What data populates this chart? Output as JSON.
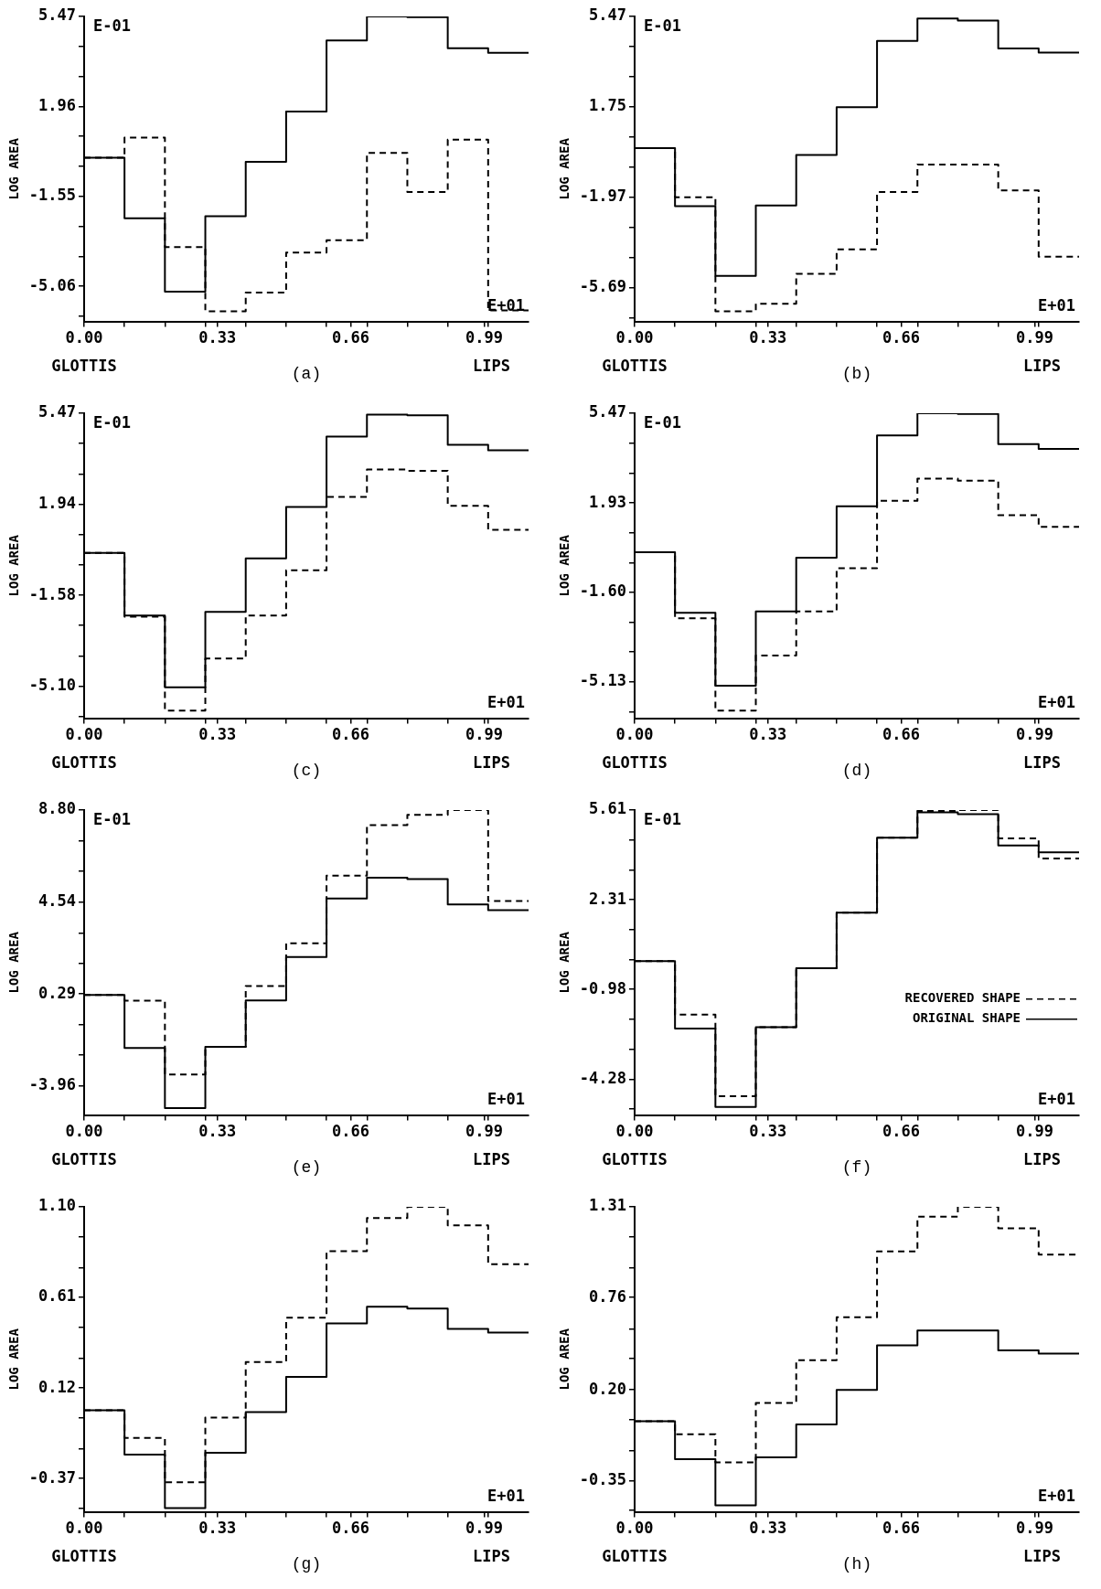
{
  "chart_data": [
    {
      "type": "step",
      "xlabel": "(a)",
      "ylabel": "LOG AREA",
      "annotations": [
        "E-01",
        "E+01",
        "GLOTTIS",
        "LIPS"
      ],
      "x": [
        0,
        0.1,
        0.2,
        0.3,
        0.4,
        0.5,
        0.6,
        0.7,
        0.8,
        0.9,
        1.0,
        1.1
      ],
      "xlim": [
        0,
        1.1
      ],
      "xticks": [
        {
          "value": 0,
          "label": "0.00"
        },
        {
          "value": 0.1,
          "label": null
        },
        {
          "value": 0.2,
          "label": null
        },
        {
          "value": 0.3,
          "label": null
        },
        {
          "value": 0.33,
          "label": "0.33"
        },
        {
          "value": 0.4,
          "label": null
        },
        {
          "value": 0.5,
          "label": null
        },
        {
          "value": 0.6,
          "label": null
        },
        {
          "value": 0.66,
          "label": "0.66"
        },
        {
          "value": 0.7,
          "label": null
        },
        {
          "value": 0.8,
          "label": null
        },
        {
          "value": 0.9,
          "label": null
        },
        {
          "value": 0.99,
          "label": "0.99"
        },
        {
          "value": 1.0,
          "label": null
        }
      ],
      "ylim": [
        -6.43,
        5.47
      ],
      "yticks": [
        5.47,
        {
          "value": 4.3,
          "label": null
        },
        {
          "value": 3.13,
          "label": null
        },
        1.96,
        {
          "value": 0.79,
          "label": null
        },
        {
          "value": -0.38,
          "label": null
        },
        -1.55,
        {
          "value": -2.72,
          "label": null
        },
        {
          "value": -3.89,
          "label": null
        },
        -5.06,
        {
          "value": -6.23,
          "label": null
        }
      ],
      "series": [
        {
          "color": "#000000",
          "line_style": "solid",
          "values": [
            -0.04,
            -2.4,
            -5.27,
            -2.32,
            -0.2,
            1.76,
            4.53,
            5.47,
            5.44,
            4.23,
            4.05,
            4.05
          ]
        },
        {
          "color": "#000000",
          "line_style": "dashed",
          "values": [
            -0.04,
            0.74,
            -3.53,
            -6.03,
            -5.3,
            -3.74,
            -3.26,
            0.15,
            -1.38,
            0.66,
            -6.0,
            -6.0
          ]
        }
      ]
    },
    {
      "type": "step",
      "xlabel": "(b)",
      "ylabel": "LOG AREA",
      "annotations": [
        "E-01",
        "E+01",
        "GLOTTIS",
        "LIPS"
      ],
      "x": [
        0,
        0.1,
        0.2,
        0.3,
        0.4,
        0.5,
        0.6,
        0.7,
        0.8,
        0.9,
        1.0,
        1.1
      ],
      "xlim": [
        0,
        1.1
      ],
      "xticks": [
        {
          "value": 0,
          "label": "0.00"
        },
        {
          "value": 0.1,
          "label": null
        },
        {
          "value": 0.2,
          "label": null
        },
        {
          "value": 0.3,
          "label": null
        },
        {
          "value": 0.33,
          "label": "0.33"
        },
        {
          "value": 0.4,
          "label": null
        },
        {
          "value": 0.5,
          "label": null
        },
        {
          "value": 0.6,
          "label": null
        },
        {
          "value": 0.66,
          "label": "0.66"
        },
        {
          "value": 0.7,
          "label": null
        },
        {
          "value": 0.8,
          "label": null
        },
        {
          "value": 0.9,
          "label": null
        },
        {
          "value": 0.99,
          "label": "0.99"
        },
        {
          "value": 1.0,
          "label": null
        }
      ],
      "ylim": [
        -7.08,
        5.47
      ],
      "yticks": [
        5.47,
        {
          "value": 4.23,
          "label": null
        },
        {
          "value": 2.99,
          "label": null
        },
        1.75,
        {
          "value": 0.51,
          "label": null
        },
        {
          "value": -0.73,
          "label": null
        },
        -1.97,
        {
          "value": -3.21,
          "label": null
        },
        {
          "value": -4.45,
          "label": null
        },
        -5.69,
        {
          "value": -6.93,
          "label": null
        }
      ],
      "series": [
        {
          "color": "#000000",
          "line_style": "solid",
          "values": [
            0.05,
            -2.34,
            -5.2,
            -2.31,
            -0.23,
            1.74,
            4.46,
            5.39,
            5.3,
            4.15,
            3.98,
            3.98
          ]
        },
        {
          "color": "#000000",
          "line_style": "dashed",
          "values": [
            0.05,
            -1.97,
            -6.66,
            -6.35,
            -5.12,
            -4.11,
            -1.75,
            -0.62,
            -0.62,
            -1.69,
            -4.41,
            -4.41
          ]
        }
      ]
    },
    {
      "type": "step",
      "xlabel": "(c)",
      "ylabel": "LOG AREA",
      "annotations": [
        "E-01",
        "E+01",
        "GLOTTIS",
        "LIPS"
      ],
      "x": [
        0,
        0.1,
        0.2,
        0.3,
        0.4,
        0.5,
        0.6,
        0.7,
        0.8,
        0.9,
        1.0,
        1.1
      ],
      "xlim": [
        0,
        1.1
      ],
      "xticks": [
        {
          "value": 0,
          "label": "0.00"
        },
        {
          "value": 0.1,
          "label": null
        },
        {
          "value": 0.2,
          "label": null
        },
        {
          "value": 0.3,
          "label": null
        },
        {
          "value": 0.33,
          "label": "0.33"
        },
        {
          "value": 0.4,
          "label": null
        },
        {
          "value": 0.5,
          "label": null
        },
        {
          "value": 0.6,
          "label": null
        },
        {
          "value": 0.66,
          "label": "0.66"
        },
        {
          "value": 0.7,
          "label": null
        },
        {
          "value": 0.8,
          "label": null
        },
        {
          "value": 0.9,
          "label": null
        },
        {
          "value": 0.99,
          "label": "0.99"
        },
        {
          "value": 1.0,
          "label": null
        }
      ],
      "ylim": [
        -6.34,
        5.47
      ],
      "yticks": [
        5.47,
        {
          "value": 4.3,
          "label": null
        },
        {
          "value": 3.12,
          "label": null
        },
        1.94,
        {
          "value": 0.77,
          "label": null
        },
        {
          "value": -0.41,
          "label": null
        },
        -1.58,
        {
          "value": -2.75,
          "label": null
        },
        {
          "value": -3.93,
          "label": null
        },
        {
          "value": -5.1,
          "label": "-5.10"
        },
        {
          "value": -6.27,
          "label": null
        }
      ],
      "series": [
        {
          "color": "#000000",
          "line_style": "solid",
          "values": [
            0.06,
            -2.36,
            -5.14,
            -2.22,
            -0.15,
            1.84,
            4.57,
            5.42,
            5.39,
            4.25,
            4.04,
            4.04
          ]
        },
        {
          "color": "#000000",
          "line_style": "dashed",
          "values": [
            0.06,
            -2.41,
            -6.04,
            -4.03,
            -2.36,
            -0.61,
            2.23,
            3.29,
            3.24,
            1.89,
            0.96,
            0.96
          ]
        }
      ]
    },
    {
      "type": "step",
      "xlabel": "(d)",
      "ylabel": "LOG AREA",
      "annotations": [
        "E-01",
        "E+01",
        "GLOTTIS",
        "LIPS"
      ],
      "x": [
        0,
        0.1,
        0.2,
        0.3,
        0.4,
        0.5,
        0.6,
        0.7,
        0.8,
        0.9,
        1.0,
        1.1
      ],
      "xlim": [
        0,
        1.1
      ],
      "xticks": [
        {
          "value": 0,
          "label": "0.00"
        },
        {
          "value": 0.1,
          "label": null
        },
        {
          "value": 0.2,
          "label": null
        },
        {
          "value": 0.3,
          "label": null
        },
        {
          "value": 0.33,
          "label": "0.33"
        },
        {
          "value": 0.4,
          "label": null
        },
        {
          "value": 0.5,
          "label": null
        },
        {
          "value": 0.6,
          "label": null
        },
        {
          "value": 0.66,
          "label": "0.66"
        },
        {
          "value": 0.7,
          "label": null
        },
        {
          "value": 0.8,
          "label": null
        },
        {
          "value": 0.9,
          "label": null
        },
        {
          "value": 0.99,
          "label": "0.99"
        },
        {
          "value": 1.0,
          "label": null
        }
      ],
      "ylim": [
        -6.56,
        5.47
      ],
      "yticks": [
        5.47,
        {
          "value": 4.29,
          "label": null
        },
        {
          "value": 3.11,
          "label": null
        },
        1.93,
        {
          "value": 0.75,
          "label": null
        },
        {
          "value": -0.42,
          "label": null
        },
        {
          "value": -1.6,
          "label": "-1.60"
        },
        {
          "value": -2.78,
          "label": null
        },
        {
          "value": -3.95,
          "label": null
        },
        -5.13,
        {
          "value": -6.31,
          "label": null
        }
      ],
      "series": [
        {
          "color": "#000000",
          "line_style": "solid",
          "values": [
            -0.01,
            -2.4,
            -5.28,
            -2.35,
            -0.23,
            1.8,
            4.6,
            5.47,
            5.44,
            4.25,
            4.06,
            4.06
          ]
        },
        {
          "color": "#000000",
          "line_style": "dashed",
          "values": [
            -0.01,
            -2.62,
            -6.26,
            -4.09,
            -2.35,
            -0.64,
            2.02,
            2.89,
            2.81,
            1.45,
            0.99,
            0.99
          ]
        }
      ]
    },
    {
      "type": "step",
      "xlabel": "(e)",
      "ylabel": "LOG AREA",
      "annotations": [
        "E-01",
        "E+01",
        "GLOTTIS",
        "LIPS"
      ],
      "x": [
        0,
        0.1,
        0.2,
        0.3,
        0.4,
        0.5,
        0.6,
        0.7,
        0.8,
        0.9,
        1.0,
        1.1
      ],
      "xlim": [
        0,
        1.1
      ],
      "xticks": [
        {
          "value": 0,
          "label": "0.00"
        },
        {
          "value": 0.1,
          "label": null
        },
        {
          "value": 0.2,
          "label": null
        },
        {
          "value": 0.3,
          "label": null
        },
        {
          "value": 0.33,
          "label": "0.33"
        },
        {
          "value": 0.4,
          "label": null
        },
        {
          "value": 0.5,
          "label": null
        },
        {
          "value": 0.6,
          "label": null
        },
        {
          "value": 0.66,
          "label": "0.66"
        },
        {
          "value": 0.7,
          "label": null
        },
        {
          "value": 0.8,
          "label": null
        },
        {
          "value": 0.9,
          "label": null
        },
        {
          "value": 0.99,
          "label": "0.99"
        },
        {
          "value": 1.0,
          "label": null
        }
      ],
      "ylim": [
        -5.31,
        8.8
      ],
      "yticks": [
        {
          "value": 8.8,
          "label": "8.80"
        },
        {
          "value": 7.38,
          "label": null
        },
        {
          "value": 5.96,
          "label": null
        },
        4.54,
        {
          "value": 3.12,
          "label": null
        },
        {
          "value": 1.71,
          "label": null
        },
        0.29,
        {
          "value": -1.13,
          "label": null
        },
        {
          "value": -2.54,
          "label": null
        },
        -3.96
      ],
      "series": [
        {
          "color": "#000000",
          "line_style": "solid",
          "values": [
            0.25,
            -2.21,
            -4.99,
            -2.15,
            -0.01,
            2.0,
            4.71,
            5.67,
            5.61,
            4.43,
            4.17,
            4.17
          ]
        },
        {
          "color": "#000000",
          "line_style": "dashed",
          "values": [
            0.25,
            -0.02,
            -3.43,
            -2.15,
            0.66,
            2.64,
            5.77,
            8.1,
            8.58,
            8.8,
            4.59,
            4.59
          ]
        }
      ]
    },
    {
      "type": "step",
      "xlabel": "(f)",
      "ylabel": "LOG AREA",
      "annotations": [
        "E-01",
        "E+01",
        "GLOTTIS",
        "LIPS"
      ],
      "legend": "right",
      "x": [
        0,
        0.1,
        0.2,
        0.3,
        0.4,
        0.5,
        0.6,
        0.7,
        0.8,
        0.9,
        1.0,
        1.1
      ],
      "xlim": [
        0,
        1.1
      ],
      "xticks": [
        {
          "value": 0,
          "label": "0.00"
        },
        {
          "value": 0.1,
          "label": null
        },
        {
          "value": 0.2,
          "label": null
        },
        {
          "value": 0.3,
          "label": null
        },
        {
          "value": 0.33,
          "label": "0.33"
        },
        {
          "value": 0.4,
          "label": null
        },
        {
          "value": 0.5,
          "label": null
        },
        {
          "value": 0.6,
          "label": null
        },
        {
          "value": 0.66,
          "label": "0.66"
        },
        {
          "value": 0.7,
          "label": null
        },
        {
          "value": 0.8,
          "label": null
        },
        {
          "value": 0.9,
          "label": null
        },
        {
          "value": 0.99,
          "label": "0.99"
        },
        {
          "value": 1.0,
          "label": null
        }
      ],
      "ylim": [
        -5.6,
        5.61
      ],
      "yticks": [
        5.61,
        {
          "value": 4.51,
          "label": null
        },
        {
          "value": 3.41,
          "label": null
        },
        2.31,
        {
          "value": 1.21,
          "label": null
        },
        {
          "value": 0.12,
          "label": null
        },
        -0.98,
        {
          "value": -2.08,
          "label": null
        },
        {
          "value": -3.18,
          "label": null
        },
        -4.28,
        {
          "value": -5.38,
          "label": null
        }
      ],
      "series": [
        {
          "name": "RECOVERED SHAPE",
          "color": "#000000",
          "line_style": "dashed",
          "values": [
            0.06,
            -1.91,
            -4.91,
            -2.37,
            -0.2,
            1.84,
            4.59,
            5.58,
            5.61,
            4.57,
            3.83,
            3.83
          ]
        },
        {
          "name": "ORIGINAL SHAPE",
          "color": "#000000",
          "line_style": "solid",
          "values": [
            0.06,
            -2.42,
            -5.3,
            -2.37,
            -0.2,
            1.84,
            4.59,
            5.53,
            5.46,
            4.31,
            4.06,
            4.06
          ]
        }
      ]
    },
    {
      "type": "step",
      "xlabel": "(g)",
      "ylabel": "LOG AREA",
      "annotations": [
        "E+01",
        "GLOTTIS",
        "LIPS"
      ],
      "x": [
        0,
        0.1,
        0.2,
        0.3,
        0.4,
        0.5,
        0.6,
        0.7,
        0.8,
        0.9,
        1.0,
        1.1
      ],
      "xlim": [
        0,
        1.1
      ],
      "xticks": [
        {
          "value": 0,
          "label": "0.00"
        },
        {
          "value": 0.1,
          "label": null
        },
        {
          "value": 0.2,
          "label": null
        },
        {
          "value": 0.3,
          "label": null
        },
        {
          "value": 0.33,
          "label": "0.33"
        },
        {
          "value": 0.4,
          "label": null
        },
        {
          "value": 0.5,
          "label": null
        },
        {
          "value": 0.6,
          "label": null
        },
        {
          "value": 0.66,
          "label": "0.66"
        },
        {
          "value": 0.7,
          "label": null
        },
        {
          "value": 0.8,
          "label": null
        },
        {
          "value": 0.9,
          "label": null
        },
        {
          "value": 0.99,
          "label": "0.99"
        },
        {
          "value": 1.0,
          "label": null
        }
      ],
      "ylim": [
        -0.55,
        1.1
      ],
      "yticks": [
        {
          "value": 1.1,
          "label": "1.10"
        },
        {
          "value": 0.94,
          "label": null
        },
        {
          "value": 0.77,
          "label": null
        },
        0.61,
        {
          "value": 0.45,
          "label": null
        },
        {
          "value": 0.28,
          "label": null
        },
        0.12,
        {
          "value": -0.04,
          "label": null
        },
        {
          "value": -0.21,
          "label": null
        },
        -0.37,
        {
          "value": -0.53,
          "label": null
        }
      ],
      "series": [
        {
          "color": "#000000",
          "line_style": "solid",
          "values": [
            0.0,
            -0.24,
            -0.53,
            -0.23,
            -0.01,
            0.18,
            0.47,
            0.56,
            0.55,
            0.44,
            0.42,
            0.42
          ]
        },
        {
          "color": "#000000",
          "line_style": "dashed",
          "values": [
            0.0,
            -0.15,
            -0.39,
            -0.04,
            0.26,
            0.5,
            0.86,
            1.04,
            1.1,
            1.0,
            0.79,
            0.79
          ]
        }
      ]
    },
    {
      "type": "step",
      "xlabel": "(h)",
      "ylabel": "LOG AREA",
      "annotations": [
        "E+01",
        "GLOTTIS",
        "LIPS"
      ],
      "x": [
        0,
        0.1,
        0.2,
        0.3,
        0.4,
        0.5,
        0.6,
        0.7,
        0.8,
        0.9,
        1.0,
        1.1
      ],
      "xlim": [
        0,
        1.1
      ],
      "xticks": [
        {
          "value": 0,
          "label": "0.00"
        },
        {
          "value": 0.1,
          "label": null
        },
        {
          "value": 0.2,
          "label": null
        },
        {
          "value": 0.3,
          "label": null
        },
        {
          "value": 0.33,
          "label": "0.33"
        },
        {
          "value": 0.4,
          "label": null
        },
        {
          "value": 0.5,
          "label": null
        },
        {
          "value": 0.6,
          "label": null
        },
        {
          "value": 0.66,
          "label": "0.66"
        },
        {
          "value": 0.7,
          "label": null
        },
        {
          "value": 0.8,
          "label": null
        },
        {
          "value": 0.9,
          "label": null
        },
        {
          "value": 0.99,
          "label": "0.99"
        },
        {
          "value": 1.0,
          "label": null
        }
      ],
      "ylim": [
        -0.54,
        1.31
      ],
      "yticks": [
        1.31,
        {
          "value": 1.13,
          "label": null
        },
        {
          "value": 0.94,
          "label": null
        },
        0.76,
        {
          "value": 0.57,
          "label": null
        },
        {
          "value": 0.39,
          "label": null
        },
        {
          "value": 0.2,
          "label": "0.20"
        },
        {
          "value": 0.02,
          "label": null
        },
        {
          "value": -0.17,
          "label": null
        },
        -0.35,
        {
          "value": -0.53,
          "label": null
        }
      ],
      "series": [
        {
          "color": "#000000",
          "line_style": "solid",
          "values": [
            0.01,
            -0.22,
            -0.5,
            -0.21,
            -0.01,
            0.2,
            0.47,
            0.56,
            0.56,
            0.44,
            0.42,
            0.42
          ]
        },
        {
          "color": "#000000",
          "line_style": "dashed",
          "values": [
            0.01,
            -0.07,
            -0.24,
            0.12,
            0.38,
            0.64,
            1.04,
            1.25,
            1.31,
            1.18,
            1.02,
            1.02
          ]
        }
      ]
    }
  ]
}
